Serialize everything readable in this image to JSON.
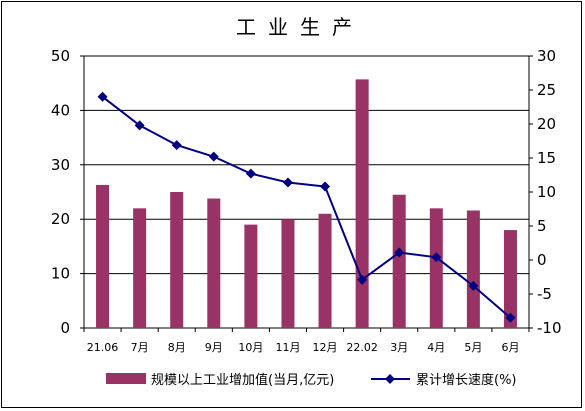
{
  "chart_data": {
    "type": "bar",
    "title": "工业生产",
    "categories": [
      "21.06",
      "7月",
      "8月",
      "9月",
      "10月",
      "11月",
      "12月",
      "22.02",
      "3月",
      "4月",
      "5月",
      "6月"
    ],
    "series": [
      {
        "name": "规模以上工业增加值(当月,亿元)",
        "type": "bar",
        "axis": "left",
        "color": "#993366",
        "values": [
          26.3,
          22.0,
          25.0,
          23.8,
          19.0,
          20.0,
          21.0,
          45.7,
          24.5,
          22.0,
          21.6,
          18.0
        ]
      },
      {
        "name": "累计增长速度(%)",
        "type": "line",
        "axis": "right",
        "color": "#000080",
        "values": [
          24.0,
          19.8,
          16.9,
          15.2,
          12.7,
          11.4,
          10.8,
          -2.9,
          1.1,
          0.4,
          -3.8,
          -8.5
        ]
      }
    ],
    "y_left": {
      "min": 0,
      "max": 50,
      "ticks": [
        0,
        10,
        20,
        30,
        40,
        50
      ]
    },
    "y_right": {
      "min": -10,
      "max": 30,
      "ticks": [
        -10,
        -5,
        0,
        5,
        10,
        15,
        20,
        25,
        30
      ]
    },
    "grid": true,
    "legend_position": "bottom"
  }
}
